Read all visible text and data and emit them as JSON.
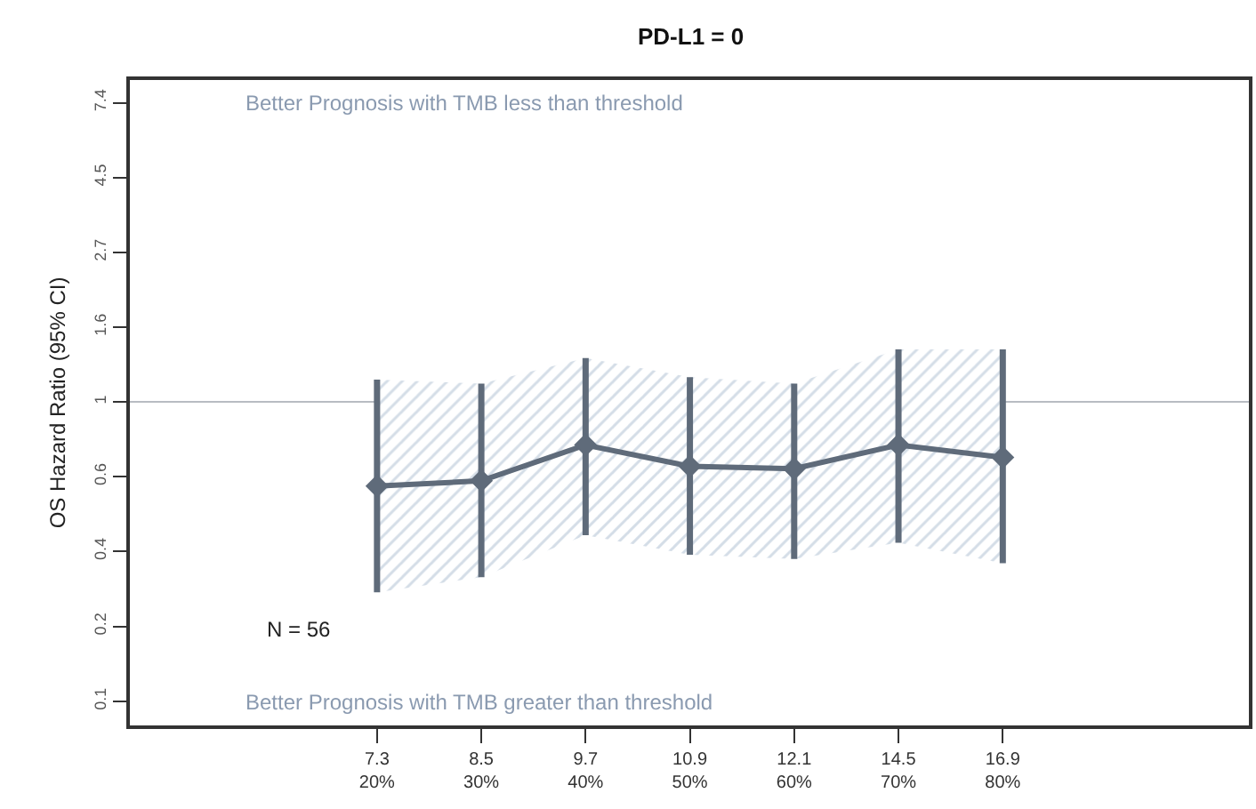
{
  "chart_data": {
    "type": "line",
    "title": "PD-L1 = 0",
    "ylabel": "OS Hazard Ratio (95% CI)",
    "categories": [
      "7.3\n20%",
      "8.5\n30%",
      "9.7\n40%",
      "10.9\n50%",
      "12.1\n60%",
      "14.5\n70%",
      "16.9\n80%"
    ],
    "series": [
      {
        "color": "#5f6b7a",
        "values": [
          0.57,
          0.59,
          0.75,
          0.65,
          0.64,
          0.75,
          0.69
        ],
        "lower": [
          0.28,
          0.31,
          0.41,
          0.36,
          0.35,
          0.39,
          0.34
        ],
        "upper": [
          1.16,
          1.13,
          1.34,
          1.18,
          1.13,
          1.42,
          1.42
        ],
        "errors": [
          [
            0.28,
            1.16
          ],
          [
            0.31,
            1.13
          ],
          [
            0.41,
            1.34
          ],
          [
            0.36,
            1.18
          ],
          [
            0.35,
            1.13
          ],
          [
            0.39,
            1.42
          ],
          [
            0.34,
            1.42
          ]
        ]
      }
    ],
    "log": "y",
    "ylim": [
      0.115,
      8.6
    ],
    "yticks": [
      {
        "value": 0.135,
        "label": "0.1"
      },
      {
        "value": 0.223,
        "label": "0.2"
      },
      {
        "value": 0.368,
        "label": "0.4"
      },
      {
        "value": 0.607,
        "label": "0.6"
      },
      1,
      {
        "value": 1.649,
        "label": "1.6"
      },
      {
        "value": 2.718,
        "label": "2.7"
      },
      {
        "value": 4.482,
        "label": "4.5"
      },
      {
        "value": 7.389,
        "label": "7.4"
      }
    ],
    "ref_lines": [
      {
        "axis": "y",
        "value": 1,
        "color": "#b8bcc2"
      }
    ],
    "annotations": [
      "Better Prognosis with TMB less than threshold",
      "Better Prognosis with TMB greater than threshold",
      "N = 56"
    ],
    "marker": "diamond",
    "grid": false
  }
}
